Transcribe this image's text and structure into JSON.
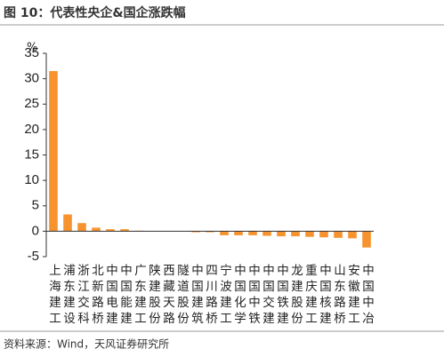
{
  "chart_data": {
    "type": "bar",
    "title": "图 10：代表性央企&国企涨跌幅",
    "source": "资料来源：Wind，天风证券研究所",
    "y_unit": "%",
    "categories": [
      "上海建工",
      "浦东建设",
      "浙江交科",
      "北新路桥",
      "中国电建",
      "中国能建",
      "广东建工",
      "陕建股份",
      "西藏天路",
      "隧道股份",
      "中国建筑",
      "四川路桥",
      "宁波建工",
      "中国化学",
      "中国中铁",
      "中国交建",
      "中国铁建",
      "龙建股份",
      "重庆建工",
      "中国核建",
      "山东路桥",
      "安徽建工",
      "中国中冶"
    ],
    "values": [
      31.5,
      3.3,
      1.6,
      0.7,
      0.4,
      0.4,
      0.1,
      0.05,
      0,
      0,
      -0.2,
      -0.2,
      -0.8,
      -0.8,
      -0.8,
      -0.9,
      -1.0,
      -1.0,
      -1.1,
      -1.2,
      -1.3,
      -1.4,
      -3.2
    ],
    "color": "#f7932e",
    "ylim": [
      -5,
      35
    ],
    "yticks": [
      -5,
      0,
      5,
      10,
      15,
      20,
      25,
      30,
      35
    ],
    "grid": false
  }
}
